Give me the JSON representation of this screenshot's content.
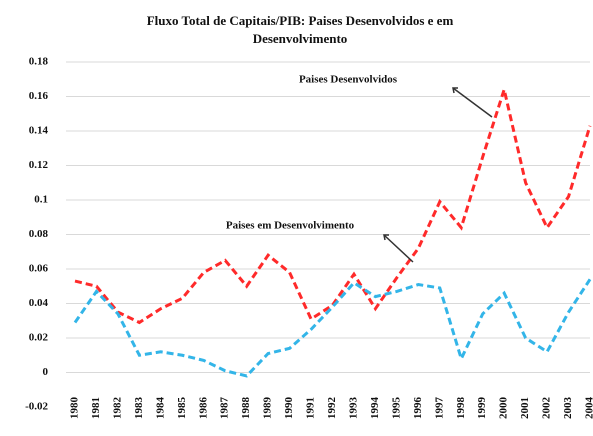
{
  "chart_data": {
    "type": "line",
    "title": "Fluxo Total de Capitais/PIB: Paises Desenvolvidos e em Desenvolvimento",
    "categories": [
      "1980",
      "1981",
      "1982",
      "1983",
      "1984",
      "1985",
      "1986",
      "1987",
      "1988",
      "1989",
      "1990",
      "1991",
      "1992",
      "1993",
      "1994",
      "1995",
      "1996",
      "1997",
      "1998",
      "1999",
      "2000",
      "2001",
      "2002",
      "2003",
      "2004"
    ],
    "series": [
      {
        "name": "Paises Desenvolvidos",
        "color": "#ff2a2a",
        "values": [
          0.053,
          0.05,
          0.035,
          0.029,
          0.037,
          0.043,
          0.058,
          0.065,
          0.05,
          0.068,
          0.058,
          0.031,
          0.039,
          0.057,
          0.037,
          0.055,
          0.072,
          0.099,
          0.084,
          0.125,
          0.164,
          0.11,
          0.084,
          0.102,
          0.143
        ]
      },
      {
        "name": "Paises em Desenvolvimento",
        "color": "#33b5e8",
        "values": [
          0.029,
          0.047,
          0.034,
          0.01,
          0.012,
          0.01,
          0.007,
          0.001,
          -0.002,
          0.011,
          0.014,
          0.025,
          0.038,
          0.052,
          0.044,
          0.047,
          0.051,
          0.049,
          0.008,
          0.034,
          0.046,
          0.02,
          0.012,
          0.035,
          0.054
        ]
      }
    ],
    "ylim": [
      -0.02,
      0.18
    ],
    "yticks": [
      -0.02,
      0,
      0.02,
      0.04,
      0.06,
      0.08,
      0.1,
      0.12,
      0.14,
      0.16,
      0.18
    ],
    "grid": true
  }
}
